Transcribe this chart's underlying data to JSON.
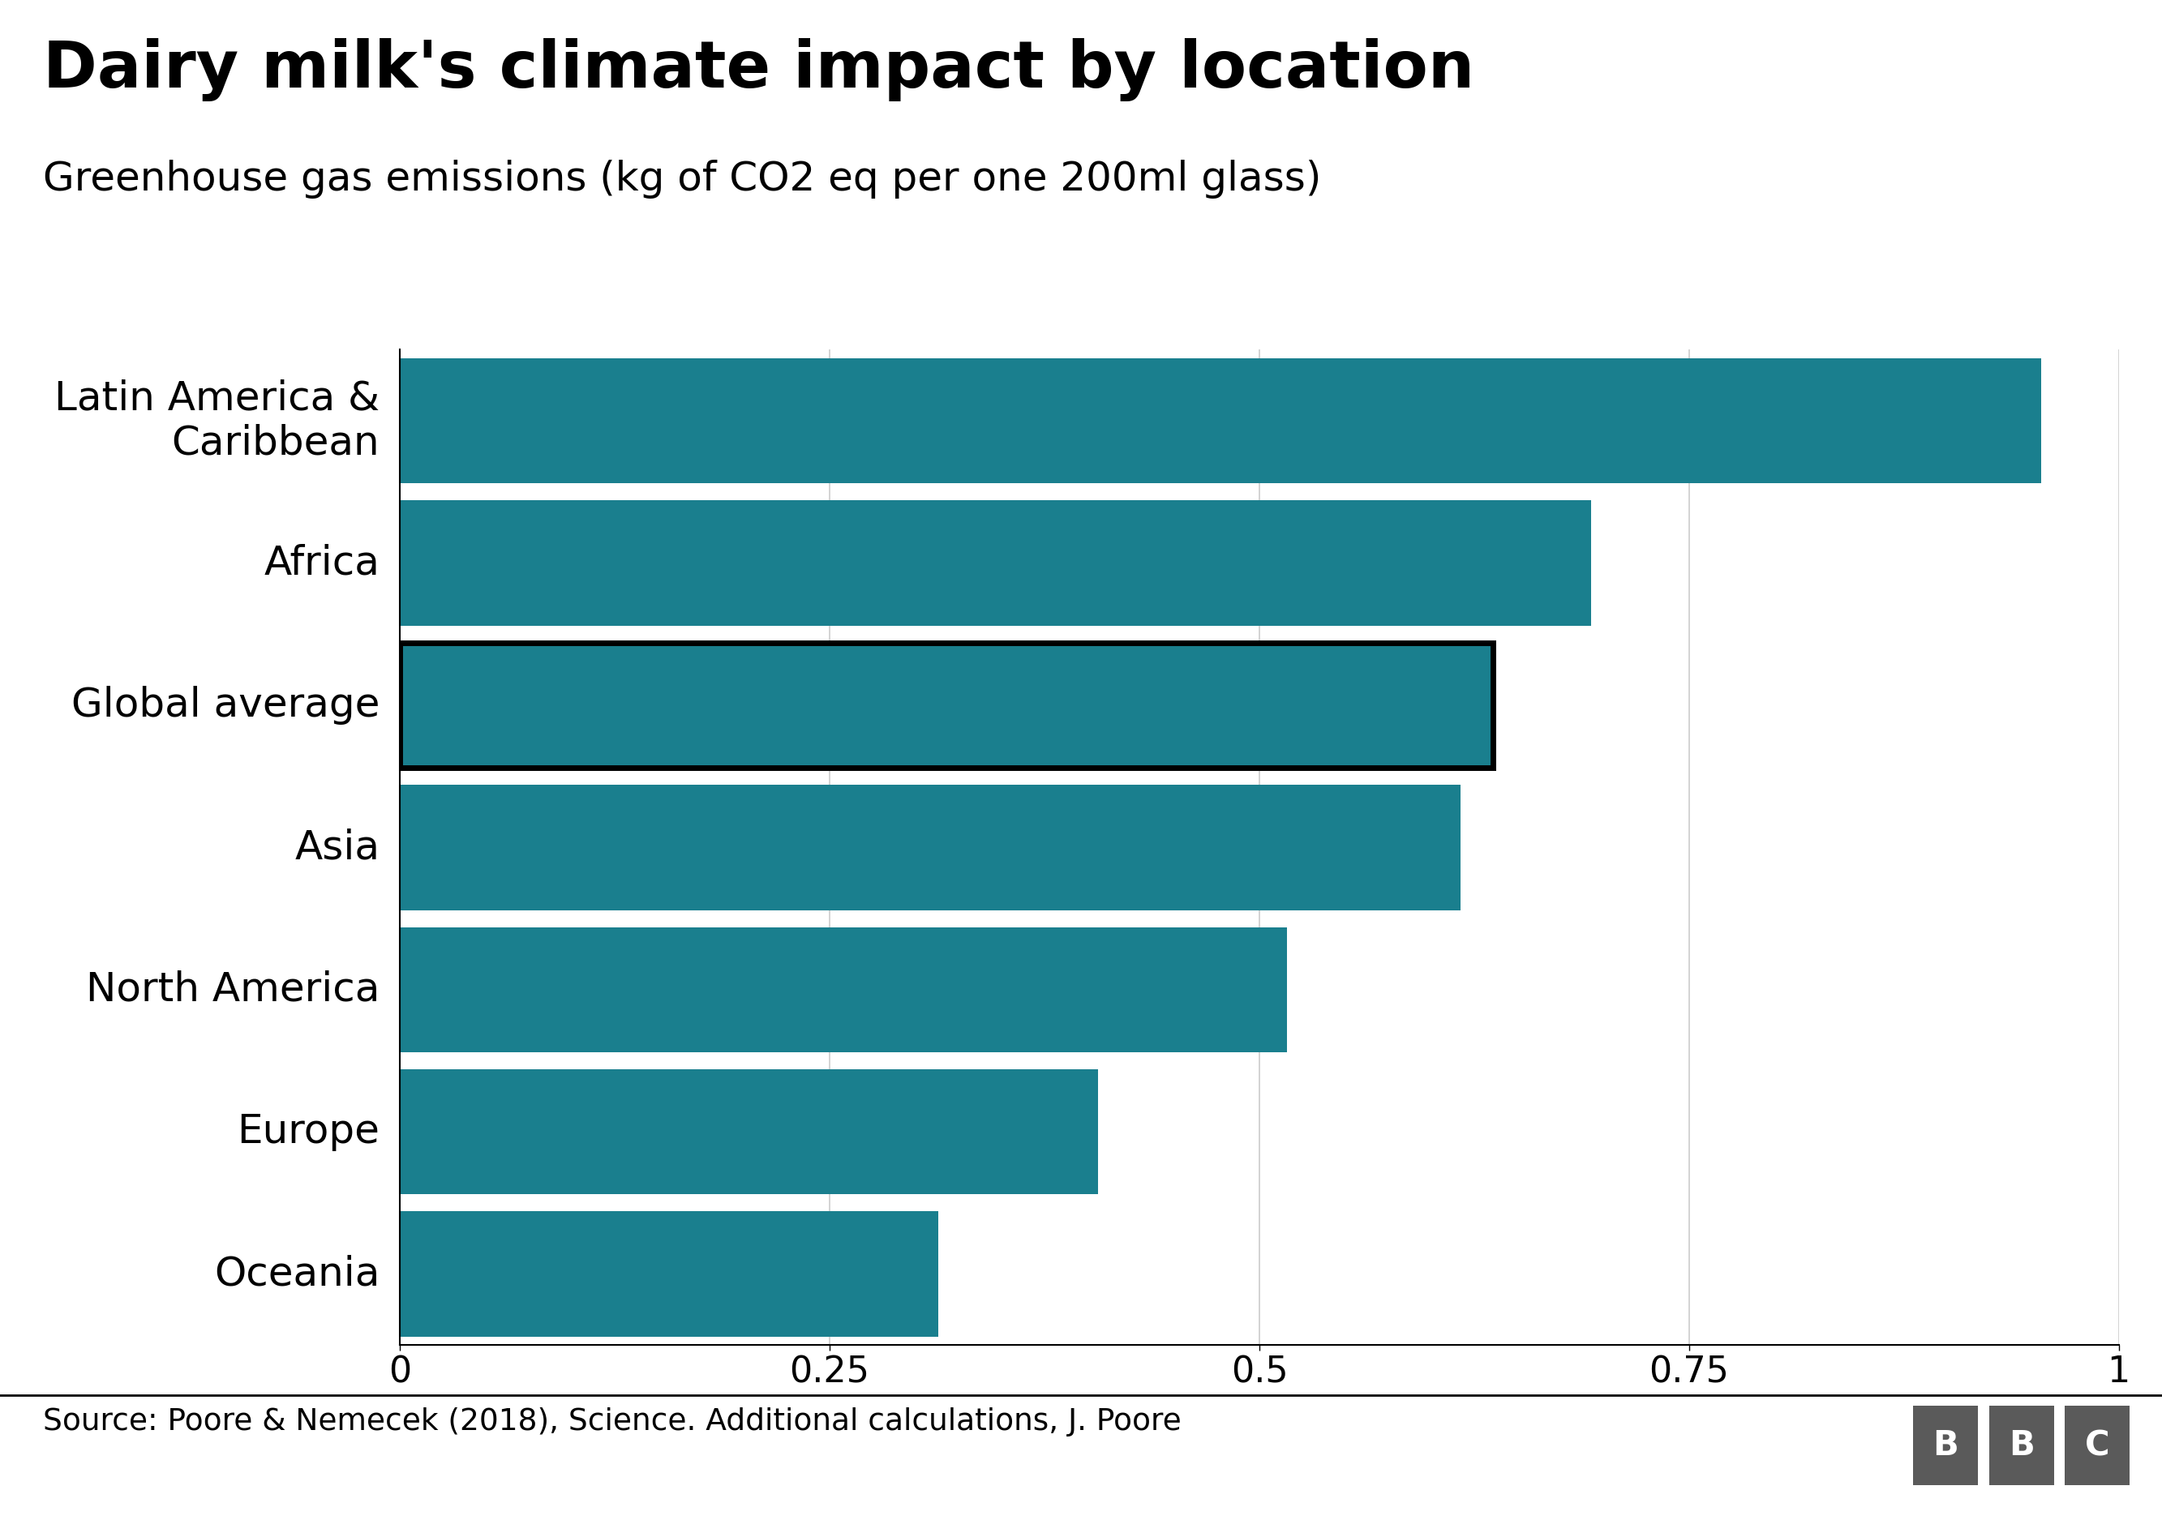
{
  "title": "Dairy milk's climate impact by location",
  "subtitle": "Greenhouse gas emissions (kg of CO2 eq per one 200ml glass)",
  "source": "Source: Poore & Nemecek (2018), Science. Additional calculations, J. Poore",
  "categories": [
    "Latin America &\nCaribbean",
    "Africa",
    "Global average",
    "Asia",
    "North America",
    "Europe",
    "Oceania"
  ],
  "values": [
    0.955,
    0.693,
    0.636,
    0.617,
    0.516,
    0.406,
    0.313
  ],
  "bar_color": "#1a7f8e",
  "global_avg_index": 2,
  "xlim": [
    0,
    1.0
  ],
  "xticks": [
    0,
    0.25,
    0.5,
    0.75,
    1.0
  ],
  "xtick_labels": [
    "0",
    "0.25",
    "0.5",
    "0.75",
    "1"
  ],
  "background_color": "#ffffff",
  "title_fontsize": 58,
  "subtitle_fontsize": 36,
  "tick_fontsize": 32,
  "label_fontsize": 36,
  "source_fontsize": 27,
  "bar_height": 0.88,
  "bar_color_global": "#1a7f8e",
  "global_border_lw": 5,
  "bbc_box_color": "#5a5a5a"
}
